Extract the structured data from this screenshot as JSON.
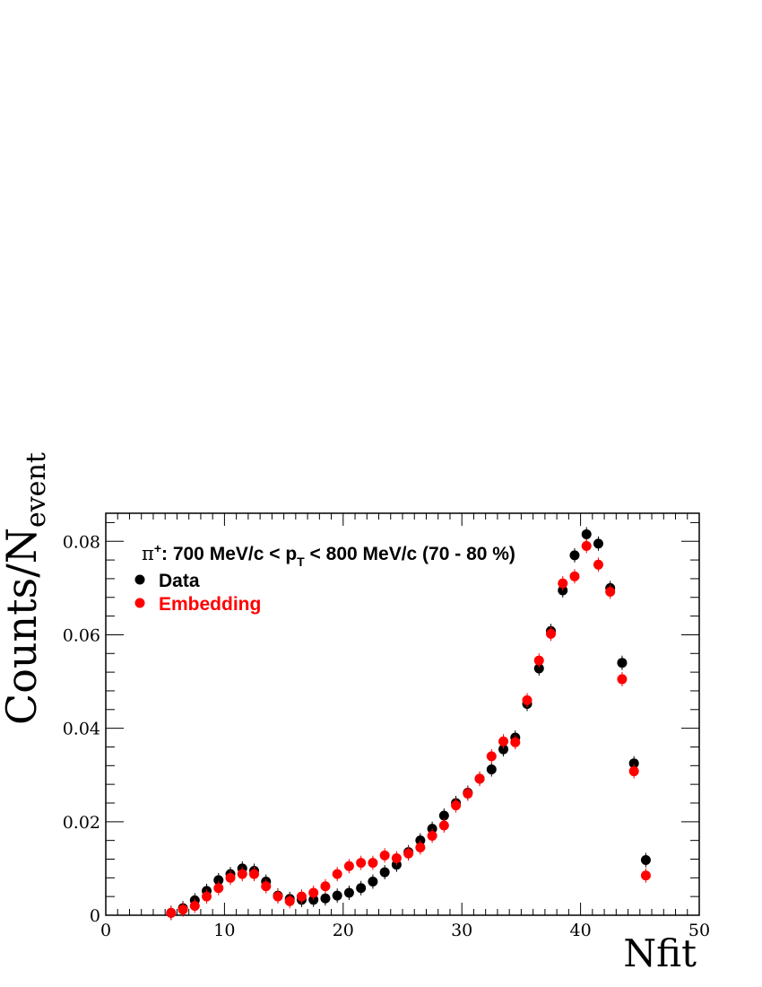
{
  "chart_data": {
    "type": "scatter",
    "title_parts": {
      "pi": "π",
      "sup": "+",
      "pre": ": 700 MeV/c < p",
      "sub": "T",
      "post": " < 800 MeV/c (70 - 80 %)"
    },
    "xlabel": "Nfit",
    "ylabel_main": "Counts/N",
    "ylabel_sub": "event",
    "xlim": [
      0,
      50
    ],
    "ylim": [
      0,
      0.086
    ],
    "x_ticks": [
      "0",
      "10",
      "20",
      "30",
      "40",
      "50"
    ],
    "y_ticks": [
      "0",
      "0.02",
      "0.04",
      "0.06",
      "0.08"
    ],
    "legend_position": "top-left",
    "series": [
      {
        "name": "Data",
        "color": "#000000",
        "x": [
          5.5,
          6.5,
          7.5,
          8.5,
          9.5,
          10.5,
          11.5,
          12.5,
          13.5,
          14.5,
          15.5,
          16.5,
          17.5,
          18.5,
          19.5,
          20.5,
          21.5,
          22.5,
          23.5,
          24.5,
          25.5,
          26.5,
          27.5,
          28.5,
          29.5,
          30.5,
          31.5,
          32.5,
          33.5,
          34.5,
          35.5,
          36.5,
          37.5,
          38.5,
          39.5,
          40.5,
          41.5,
          42.5,
          43.5,
          44.5,
          45.5
        ],
        "y": [
          0.0005,
          0.0015,
          0.0032,
          0.0052,
          0.0075,
          0.0088,
          0.01,
          0.0095,
          0.0072,
          0.0042,
          0.0035,
          0.0033,
          0.0033,
          0.0036,
          0.0042,
          0.0048,
          0.0058,
          0.0072,
          0.0092,
          0.0108,
          0.0135,
          0.016,
          0.0185,
          0.0213,
          0.024,
          0.0262,
          0.0292,
          0.0312,
          0.0355,
          0.038,
          0.0452,
          0.0528,
          0.0608,
          0.0695,
          0.077,
          0.0815,
          0.0795,
          0.07,
          0.054,
          0.0325,
          0.0118
        ]
      },
      {
        "name": "Embedding",
        "color": "#ff0000",
        "x": [
          5.5,
          6.5,
          7.5,
          8.5,
          9.5,
          10.5,
          11.5,
          12.5,
          13.5,
          14.5,
          15.5,
          16.5,
          17.5,
          18.5,
          19.5,
          20.5,
          21.5,
          22.5,
          23.5,
          24.5,
          25.5,
          26.5,
          27.5,
          28.5,
          29.5,
          30.5,
          31.5,
          32.5,
          33.5,
          34.5,
          35.5,
          36.5,
          37.5,
          38.5,
          39.5,
          40.5,
          41.5,
          42.5,
          43.5,
          44.5,
          45.5
        ],
        "y": [
          0.0005,
          0.0012,
          0.002,
          0.004,
          0.0058,
          0.008,
          0.0088,
          0.0088,
          0.0062,
          0.004,
          0.003,
          0.004,
          0.0048,
          0.0062,
          0.0088,
          0.0105,
          0.0112,
          0.0112,
          0.0128,
          0.0122,
          0.0132,
          0.0145,
          0.017,
          0.0192,
          0.0235,
          0.026,
          0.0292,
          0.034,
          0.0372,
          0.037,
          0.046,
          0.0545,
          0.0602,
          0.071,
          0.0725,
          0.079,
          0.075,
          0.0692,
          0.0505,
          0.0308,
          0.0085
        ]
      }
    ]
  }
}
